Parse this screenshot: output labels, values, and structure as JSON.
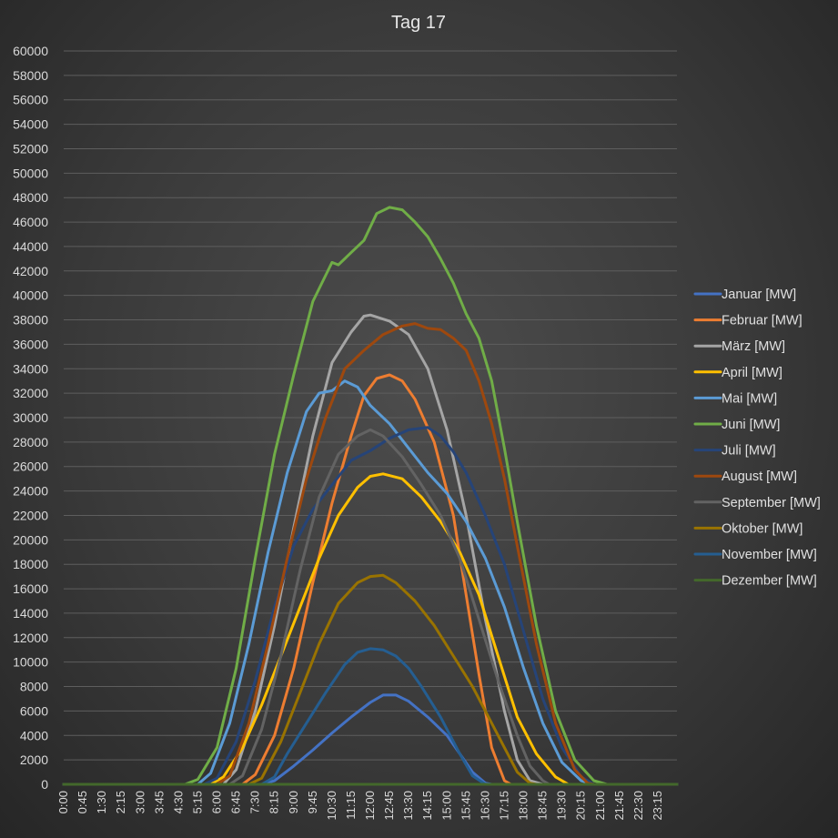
{
  "chart_data": {
    "type": "line",
    "title": "Tag 17",
    "xlabel": "",
    "ylabel": "",
    "ylim": [
      0,
      60000
    ],
    "y_ticks": [
      0,
      2000,
      4000,
      6000,
      8000,
      10000,
      12000,
      14000,
      16000,
      18000,
      20000,
      22000,
      24000,
      26000,
      28000,
      30000,
      32000,
      34000,
      36000,
      38000,
      40000,
      42000,
      44000,
      46000,
      48000,
      50000,
      52000,
      54000,
      56000,
      58000,
      60000
    ],
    "x_tick_labels": [
      "0:00",
      "0:45",
      "1:30",
      "2:15",
      "3:00",
      "3:45",
      "4:30",
      "5:15",
      "6:00",
      "6:45",
      "7:30",
      "8:15",
      "9:00",
      "9:45",
      "10:30",
      "11:15",
      "12:00",
      "12:45",
      "13:30",
      "14:15",
      "15:00",
      "15:45",
      "16:30",
      "17:15",
      "18:00",
      "18:45",
      "19:30",
      "20:15",
      "21:00",
      "21:45",
      "22:30",
      "23:15"
    ],
    "x_unit": "hours of day",
    "xlim": [
      0,
      24
    ],
    "grid": true,
    "legend": "right",
    "series": [
      {
        "name": "Januar [MW]",
        "color": "#4472c4",
        "points": [
          [
            0,
            0
          ],
          [
            7.75,
            0
          ],
          [
            8.25,
            300
          ],
          [
            9,
            1500
          ],
          [
            9.75,
            2800
          ],
          [
            10.5,
            4200
          ],
          [
            11.25,
            5500
          ],
          [
            12,
            6700
          ],
          [
            12.5,
            7300
          ],
          [
            13,
            7300
          ],
          [
            13.5,
            6800
          ],
          [
            14.25,
            5500
          ],
          [
            15,
            4000
          ],
          [
            15.5,
            2500
          ],
          [
            16,
            1000
          ],
          [
            16.5,
            100
          ],
          [
            16.75,
            0
          ],
          [
            24,
            0
          ]
        ]
      },
      {
        "name": "Februar [MW]",
        "color": "#ed7d31",
        "points": [
          [
            0,
            0
          ],
          [
            7,
            0
          ],
          [
            7.5,
            800
          ],
          [
            8.25,
            4000
          ],
          [
            9,
            9500
          ],
          [
            9.75,
            16500
          ],
          [
            10.5,
            23000
          ],
          [
            11.25,
            28500
          ],
          [
            11.75,
            31800
          ],
          [
            12.25,
            33200
          ],
          [
            12.75,
            33500
          ],
          [
            13.25,
            33000
          ],
          [
            13.75,
            31500
          ],
          [
            14.5,
            28000
          ],
          [
            15.25,
            22000
          ],
          [
            15.75,
            15500
          ],
          [
            16.25,
            9000
          ],
          [
            16.75,
            3000
          ],
          [
            17.25,
            300
          ],
          [
            17.5,
            0
          ],
          [
            24,
            0
          ]
        ]
      },
      {
        "name": "März [MW]",
        "color": "#a5a5a5",
        "points": [
          [
            0,
            0
          ],
          [
            6.25,
            0
          ],
          [
            6.75,
            1200
          ],
          [
            7.5,
            6000
          ],
          [
            8.25,
            13000
          ],
          [
            9,
            21000
          ],
          [
            9.75,
            28500
          ],
          [
            10.5,
            34500
          ],
          [
            11.25,
            37000
          ],
          [
            11.75,
            38300
          ],
          [
            12,
            38400
          ],
          [
            12.75,
            37900
          ],
          [
            13.5,
            36800
          ],
          [
            14.25,
            34000
          ],
          [
            15,
            29000
          ],
          [
            15.75,
            22000
          ],
          [
            16.5,
            13500
          ],
          [
            17.25,
            6000
          ],
          [
            17.75,
            2000
          ],
          [
            18.25,
            300
          ],
          [
            18.75,
            0
          ],
          [
            24,
            0
          ]
        ]
      },
      {
        "name": "April [MW]",
        "color": "#ffc000",
        "points": [
          [
            0,
            0
          ],
          [
            5.75,
            0
          ],
          [
            6.25,
            600
          ],
          [
            7,
            3000
          ],
          [
            7.75,
            6500
          ],
          [
            8.5,
            10500
          ],
          [
            9.25,
            14500
          ],
          [
            10,
            18500
          ],
          [
            10.75,
            22000
          ],
          [
            11.5,
            24300
          ],
          [
            12,
            25200
          ],
          [
            12.5,
            25400
          ],
          [
            13.25,
            25000
          ],
          [
            14,
            23500
          ],
          [
            14.75,
            21500
          ],
          [
            15.5,
            19000
          ],
          [
            16.25,
            15500
          ],
          [
            17,
            10500
          ],
          [
            17.75,
            5500
          ],
          [
            18.5,
            2500
          ],
          [
            19.25,
            600
          ],
          [
            19.75,
            0
          ],
          [
            24,
            0
          ]
        ]
      },
      {
        "name": "Mai [MW]",
        "color": "#5b9bd5",
        "points": [
          [
            0,
            0
          ],
          [
            5.25,
            0
          ],
          [
            5.75,
            900
          ],
          [
            6.5,
            5000
          ],
          [
            7.25,
            11500
          ],
          [
            8,
            19000
          ],
          [
            8.75,
            25500
          ],
          [
            9.5,
            30500
          ],
          [
            10,
            32000
          ],
          [
            10.5,
            32200
          ],
          [
            11,
            33000
          ],
          [
            11.5,
            32500
          ],
          [
            12,
            31000
          ],
          [
            12.75,
            29500
          ],
          [
            13.5,
            27500
          ],
          [
            14.25,
            25500
          ],
          [
            15,
            23800
          ],
          [
            15.75,
            21500
          ],
          [
            16.5,
            18500
          ],
          [
            17.25,
            14500
          ],
          [
            18,
            9500
          ],
          [
            18.75,
            5000
          ],
          [
            19.5,
            1800
          ],
          [
            20.25,
            300
          ],
          [
            20.75,
            0
          ],
          [
            24,
            0
          ]
        ]
      },
      {
        "name": "Juni [MW]",
        "color": "#70ad47",
        "points": [
          [
            0,
            0
          ],
          [
            4.75,
            0
          ],
          [
            5.25,
            400
          ],
          [
            6,
            3000
          ],
          [
            6.75,
            9500
          ],
          [
            7.5,
            18500
          ],
          [
            8.25,
            27000
          ],
          [
            9,
            33500
          ],
          [
            9.75,
            39500
          ],
          [
            10.5,
            42700
          ],
          [
            10.75,
            42500
          ],
          [
            11.25,
            43500
          ],
          [
            11.75,
            44500
          ],
          [
            12.25,
            46700
          ],
          [
            12.75,
            47200
          ],
          [
            13.25,
            47000
          ],
          [
            13.75,
            46000
          ],
          [
            14.25,
            44800
          ],
          [
            14.75,
            43000
          ],
          [
            15.25,
            41000
          ],
          [
            15.75,
            38500
          ],
          [
            16.25,
            36500
          ],
          [
            16.75,
            33000
          ],
          [
            17.25,
            27500
          ],
          [
            17.75,
            21500
          ],
          [
            18.5,
            13000
          ],
          [
            19.25,
            6000
          ],
          [
            20,
            2000
          ],
          [
            20.75,
            300
          ],
          [
            21.25,
            0
          ],
          [
            24,
            0
          ]
        ]
      },
      {
        "name": "Juli [MW]",
        "color": "#264478",
        "points": [
          [
            0,
            0
          ],
          [
            5.5,
            0
          ],
          [
            6,
            500
          ],
          [
            6.75,
            3500
          ],
          [
            7.5,
            8500
          ],
          [
            8.25,
            14500
          ],
          [
            9,
            19500
          ],
          [
            9.75,
            22500
          ],
          [
            10.5,
            24500
          ],
          [
            11.25,
            26500
          ],
          [
            12,
            27300
          ],
          [
            12.75,
            28300
          ],
          [
            13.5,
            29000
          ],
          [
            14.25,
            29200
          ],
          [
            14.75,
            28500
          ],
          [
            15.25,
            27200
          ],
          [
            15.75,
            25500
          ],
          [
            16.5,
            22000
          ],
          [
            17.25,
            18000
          ],
          [
            18,
            12500
          ],
          [
            18.75,
            7000
          ],
          [
            19.5,
            3000
          ],
          [
            20.25,
            600
          ],
          [
            20.75,
            0
          ],
          [
            24,
            0
          ]
        ]
      },
      {
        "name": "August [MW]",
        "color": "#9e480e",
        "points": [
          [
            0,
            0
          ],
          [
            6,
            0
          ],
          [
            6.5,
            700
          ],
          [
            7.25,
            5000
          ],
          [
            8,
            11500
          ],
          [
            8.75,
            18500
          ],
          [
            9.5,
            25000
          ],
          [
            10.25,
            30000
          ],
          [
            11,
            34000
          ],
          [
            11.75,
            35500
          ],
          [
            12.5,
            36800
          ],
          [
            13.25,
            37500
          ],
          [
            13.75,
            37700
          ],
          [
            14.25,
            37300
          ],
          [
            14.75,
            37200
          ],
          [
            15.25,
            36500
          ],
          [
            15.75,
            35500
          ],
          [
            16.25,
            33000
          ],
          [
            16.75,
            29500
          ],
          [
            17.25,
            25000
          ],
          [
            17.75,
            19500
          ],
          [
            18.5,
            11500
          ],
          [
            19.25,
            5000
          ],
          [
            20,
            1200
          ],
          [
            20.5,
            100
          ],
          [
            20.75,
            0
          ],
          [
            24,
            0
          ]
        ]
      },
      {
        "name": "September [MW]",
        "color": "#636363",
        "points": [
          [
            0,
            0
          ],
          [
            6.5,
            0
          ],
          [
            7,
            700
          ],
          [
            7.75,
            4500
          ],
          [
            8.5,
            10500
          ],
          [
            9.25,
            17500
          ],
          [
            10,
            23500
          ],
          [
            10.75,
            27000
          ],
          [
            11.5,
            28500
          ],
          [
            12,
            29000
          ],
          [
            12.5,
            28500
          ],
          [
            13.25,
            26800
          ],
          [
            14,
            24500
          ],
          [
            14.75,
            22000
          ],
          [
            15.5,
            18500
          ],
          [
            16.25,
            13500
          ],
          [
            17,
            8500
          ],
          [
            17.75,
            4000
          ],
          [
            18.25,
            1500
          ],
          [
            18.75,
            300
          ],
          [
            19,
            0
          ],
          [
            24,
            0
          ]
        ]
      },
      {
        "name": "Oktober [MW]",
        "color": "#997300",
        "points": [
          [
            0,
            0
          ],
          [
            7.25,
            0
          ],
          [
            7.75,
            500
          ],
          [
            8.5,
            3500
          ],
          [
            9.25,
            7500
          ],
          [
            10,
            11500
          ],
          [
            10.75,
            14800
          ],
          [
            11.5,
            16500
          ],
          [
            12,
            17000
          ],
          [
            12.5,
            17100
          ],
          [
            13,
            16500
          ],
          [
            13.75,
            15000
          ],
          [
            14.5,
            13000
          ],
          [
            15.25,
            10500
          ],
          [
            16,
            8000
          ],
          [
            16.75,
            5000
          ],
          [
            17.25,
            3000
          ],
          [
            17.75,
            1000
          ],
          [
            18.25,
            100
          ],
          [
            18.5,
            0
          ],
          [
            24,
            0
          ]
        ]
      },
      {
        "name": "November [MW]",
        "color": "#255e91",
        "points": [
          [
            0,
            0
          ],
          [
            7.75,
            0
          ],
          [
            8.25,
            600
          ],
          [
            8.75,
            2500
          ],
          [
            9.5,
            5000
          ],
          [
            10.25,
            7500
          ],
          [
            11,
            9800
          ],
          [
            11.5,
            10800
          ],
          [
            12,
            11100
          ],
          [
            12.5,
            11000
          ],
          [
            13,
            10500
          ],
          [
            13.5,
            9500
          ],
          [
            14,
            8000
          ],
          [
            14.75,
            5500
          ],
          [
            15.5,
            2500
          ],
          [
            16,
            700
          ],
          [
            16.5,
            0
          ],
          [
            24,
            0
          ]
        ]
      },
      {
        "name": "Dezember [MW]",
        "color": "#43682b",
        "points": [
          [
            0,
            0
          ],
          [
            24,
            0
          ]
        ]
      }
    ]
  }
}
